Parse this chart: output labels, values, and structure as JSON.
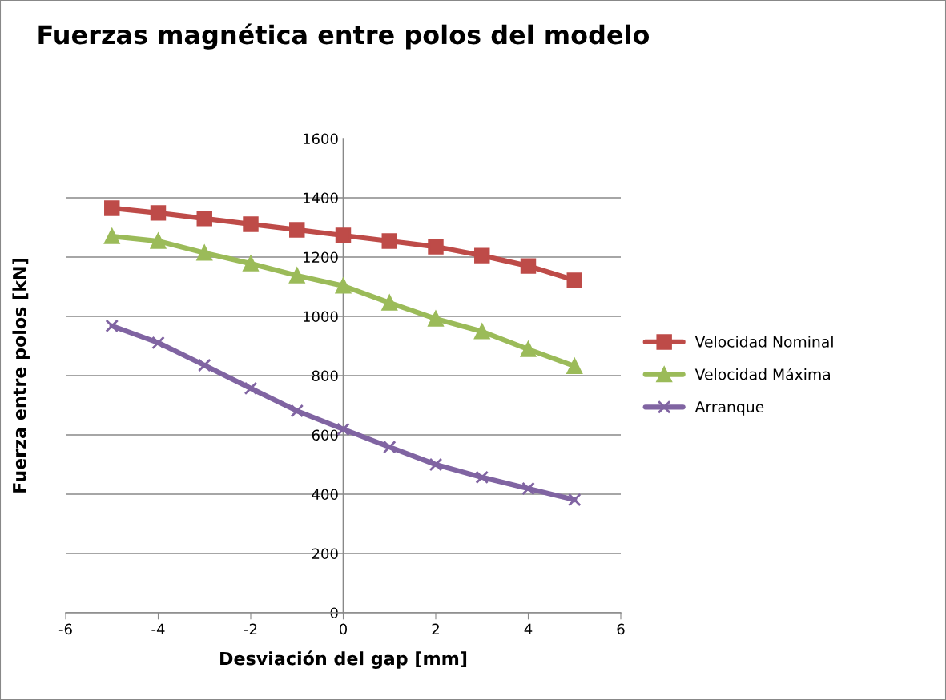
{
  "chart_data": {
    "type": "line",
    "title": "Fuerzas magnética entre polos del modelo",
    "xlabel": "Desviación del gap [mm]",
    "ylabel": "Fuerza entre polos [kN]",
    "x": [
      -5,
      -4,
      -3,
      -2,
      -1,
      0,
      1,
      2,
      3,
      4,
      5
    ],
    "series": [
      {
        "name": "Velocidad Nominal",
        "color": "#be4b48",
        "marker": "square",
        "values": [
          1365,
          1349,
          1330,
          1311,
          1292,
          1273,
          1254,
          1235,
          1205,
          1170,
          1122
        ]
      },
      {
        "name": "Velocidad Máxima",
        "color": "#9bbb59",
        "marker": "triangle",
        "values": [
          1270,
          1254,
          1214,
          1178,
          1138,
          1103,
          1046,
          992,
          949,
          889,
          832
        ]
      },
      {
        "name": "Arranque",
        "color": "#8064a2",
        "marker": "cross",
        "values": [
          968,
          911,
          835,
          757,
          681,
          619,
          559,
          500,
          457,
          419,
          381
        ]
      }
    ],
    "xlim": [
      -6,
      6
    ],
    "xticks": [
      -6,
      -4,
      -2,
      0,
      2,
      4,
      6
    ],
    "ylim": [
      0,
      1600
    ],
    "yticks": [
      0,
      200,
      400,
      600,
      800,
      1000,
      1200,
      1400,
      1600
    ],
    "grid": "y",
    "legend": "right",
    "line_style": "solid"
  }
}
